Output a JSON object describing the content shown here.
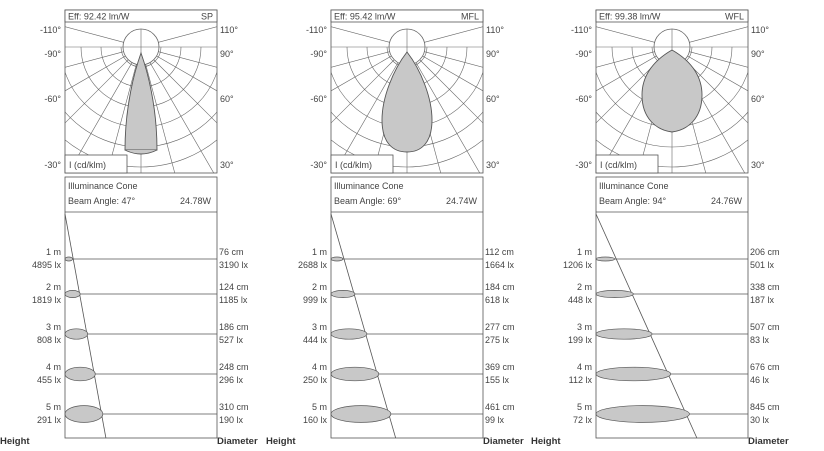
{
  "footer": {
    "height_label": "Height",
    "diameter_label": "Diameter"
  },
  "polar_common": {
    "unit_label": "I (cd/klm)",
    "left_angles": [
      "-110°",
      "-90°",
      "-60°",
      "-30°"
    ],
    "right_angles": [
      "110°",
      "90°",
      "60°",
      "30°"
    ]
  },
  "cone_common": {
    "title": "Illuminance Cone"
  },
  "colors": {
    "fill": "#c8c8c8",
    "stroke": "#555555",
    "grid": "#666666"
  },
  "panels": [
    {
      "efficiency": "Eff: 92.42 lm/W",
      "beam_code": "SP",
      "beam_angle": "Beam Angle: 47°",
      "power": "24.78W",
      "beam_angle_deg": 47,
      "rows": [
        {
          "height": "1 m",
          "lux": "4895 lx",
          "diameter": "76 cm",
          "lux_edge": "3190 lx"
        },
        {
          "height": "2 m",
          "lux": "1819 lx",
          "diameter": "124 cm",
          "lux_edge": "1185 lx"
        },
        {
          "height": "3 m",
          "lux": "808 lx",
          "diameter": "186 cm",
          "lux_edge": "527 lx"
        },
        {
          "height": "4 m",
          "lux": "455 lx",
          "diameter": "248 cm",
          "lux_edge": "296 lx"
        },
        {
          "height": "5 m",
          "lux": "291 lx",
          "diameter": "310 cm",
          "lux_edge": "190 lx"
        }
      ]
    },
    {
      "efficiency": "Eff: 95.42 lm/W",
      "beam_code": "MFL",
      "beam_angle": "Beam Angle: 69°",
      "power": "24.74W",
      "beam_angle_deg": 69,
      "rows": [
        {
          "height": "1 m",
          "lux": "2688 lx",
          "diameter": "112 cm",
          "lux_edge": "1664 lx"
        },
        {
          "height": "2 m",
          "lux": "999 lx",
          "diameter": "184 cm",
          "lux_edge": "618 lx"
        },
        {
          "height": "3 m",
          "lux": "444 lx",
          "diameter": "277 cm",
          "lux_edge": "275 lx"
        },
        {
          "height": "4 m",
          "lux": "250 lx",
          "diameter": "369 cm",
          "lux_edge": "155 lx"
        },
        {
          "height": "5 m",
          "lux": "160 lx",
          "diameter": "461 cm",
          "lux_edge": "99 lx"
        }
      ]
    },
    {
      "efficiency": "Eff: 99.38 lm/W",
      "beam_code": "WFL",
      "beam_angle": "Beam Angle: 94°",
      "power": "24.76W",
      "beam_angle_deg": 94,
      "rows": [
        {
          "height": "1 m",
          "lux": "1206 lx",
          "diameter": "206 cm",
          "lux_edge": "501 lx"
        },
        {
          "height": "2 m",
          "lux": "448 lx",
          "diameter": "338 cm",
          "lux_edge": "187 lx"
        },
        {
          "height": "3 m",
          "lux": "199 lx",
          "diameter": "507 cm",
          "lux_edge": "83 lx"
        },
        {
          "height": "4 m",
          "lux": "112 lx",
          "diameter": "676 cm",
          "lux_edge": "46 lx"
        },
        {
          "height": "5 m",
          "lux": "72 lx",
          "diameter": "845 cm",
          "lux_edge": "30 lx"
        }
      ]
    }
  ]
}
